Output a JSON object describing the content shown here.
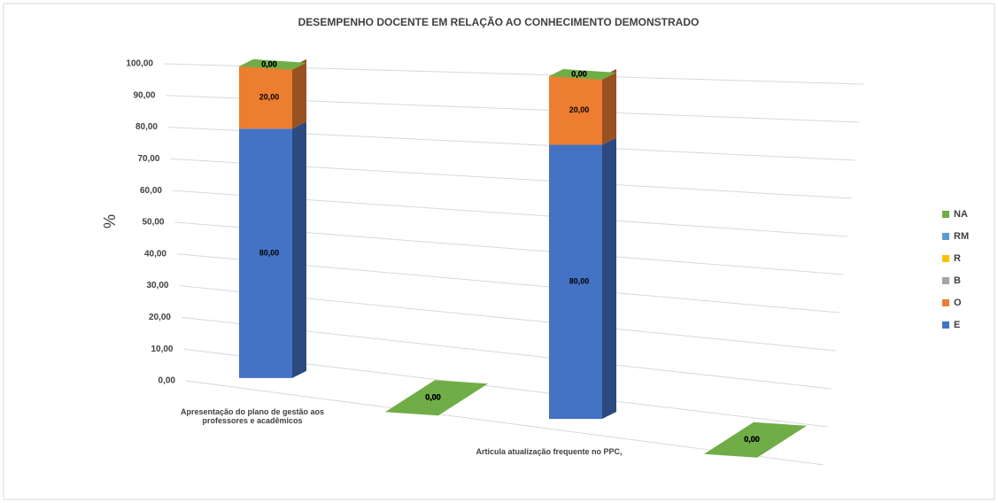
{
  "chart_data": {
    "type": "bar3d_stacked",
    "title": "DESEMPENHO DOCENTE EM RELAÇÃO AO CONHECIMENTO DEMONSTRADO",
    "y_label": "%",
    "categories": [
      "Apresentação do plano de gestão aos professores e acadêmicos",
      null,
      "Articula atualização frequente no PPC,",
      null
    ],
    "series": [
      {
        "name": "E",
        "color": "#4472c4",
        "values": [
          80,
          0,
          80,
          0
        ],
        "value_labels": [
          "80,00",
          "0,00",
          "80,00",
          "0,00"
        ]
      },
      {
        "name": "O",
        "color": "#ed7d31",
        "values": [
          20,
          0,
          20,
          0
        ],
        "value_labels": [
          "20,00",
          "0,00",
          "20,00",
          "0,00"
        ]
      },
      {
        "name": "B",
        "color": "#a5a5a5",
        "values": [
          0,
          0,
          0,
          0
        ],
        "value_labels": [
          "0,00",
          "0,00",
          "0,00",
          "0,00"
        ]
      },
      {
        "name": "R",
        "color": "#ffc000",
        "values": [
          0,
          0,
          0,
          0
        ],
        "value_labels": [
          "0,00",
          "0,00",
          "0,00",
          "0,00"
        ]
      },
      {
        "name": "RM",
        "color": "#5b9bd5",
        "values": [
          0,
          0,
          0,
          0
        ],
        "value_labels": [
          "0,00",
          "0,00",
          "0,00",
          "0,00"
        ]
      },
      {
        "name": "NA",
        "color": "#70ad47",
        "values": [
          0,
          0,
          0,
          0
        ],
        "value_labels": [
          "0,00",
          "0,00",
          "0,00",
          "0,00"
        ]
      }
    ],
    "ylim": [
      0,
      100
    ],
    "yticks": [
      {
        "value": 0,
        "label": "0,00"
      },
      {
        "value": 10,
        "label": "10,00"
      },
      {
        "value": 20,
        "label": "20,00"
      },
      {
        "value": 30,
        "label": "30,00"
      },
      {
        "value": 40,
        "label": "40,00"
      },
      {
        "value": 50,
        "label": "50,00"
      },
      {
        "value": 60,
        "label": "60,00"
      },
      {
        "value": 70,
        "label": "70,00"
      },
      {
        "value": 80,
        "label": "80,00"
      },
      {
        "value": 90,
        "label": "90,00"
      },
      {
        "value": 100,
        "label": "100,00"
      }
    ],
    "grid": true,
    "legend": "right"
  }
}
